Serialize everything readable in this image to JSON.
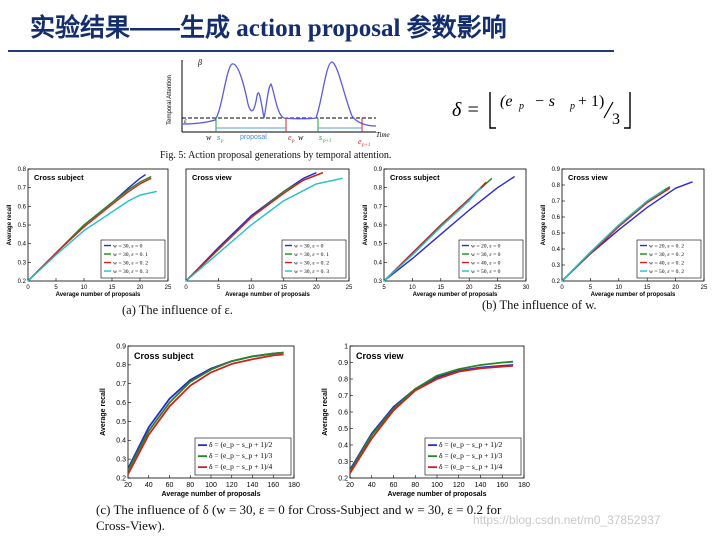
{
  "slide": {
    "title_cn_1": "实验结果——生成",
    "title_en": " action proposal ",
    "title_cn_2": "参数影响"
  },
  "formula": {
    "lhs": "δ =",
    "numerator": "(e",
    "sub_p": "p",
    "minus": "−  s",
    "plus_one": "+ 1)",
    "denominator": "3"
  },
  "fig5": {
    "caption": "Fig. 5: Action proposal generations by temporal attention.",
    "ylabel": "Temporal Attention",
    "beta": "β",
    "eps": "ε",
    "w1": "w",
    "sp": "s",
    "sp_sub": "p",
    "proposal": "proposal",
    "ep": "e",
    "ep_sub": "p",
    "w2": "w",
    "sp1": "s",
    "sp1_sub": "p+1",
    "ep1": "e",
    "ep1_sub": "p+1",
    "xlabel": "Time"
  },
  "captions": {
    "a": "(a) The influence of ε.",
    "b": "(b) The influence of w.",
    "c": "(c) The influence of δ (w = 30, ε = 0 for Cross-Subject and w = 30, ε = 0.2 for Cross-View)."
  },
  "watermark": "https://blog.csdn.net/m0_37852937",
  "chart_data": [
    {
      "id": "a1",
      "type": "line",
      "title": "Cross subject",
      "xlabel": "Average number of proposals",
      "ylabel": "Average recall",
      "xlim": [
        0,
        25
      ],
      "ylim": [
        0.2,
        0.8
      ],
      "xticks": [
        0,
        5,
        10,
        15,
        20,
        25
      ],
      "yticks": [
        0.2,
        0.3,
        0.4,
        0.5,
        0.6,
        0.7,
        0.8
      ],
      "legend": "bottom-right",
      "grid": false,
      "series": [
        {
          "name": "w = 30, ε = 0",
          "color": "#2a2ad0",
          "x": [
            0,
            5,
            10,
            15,
            18,
            20,
            21
          ],
          "y": [
            0.2,
            0.35,
            0.5,
            0.62,
            0.7,
            0.75,
            0.77
          ]
        },
        {
          "name": "w = 30, ε = 0. 1",
          "color": "#1f8a1f",
          "x": [
            0,
            5,
            10,
            15,
            18,
            20,
            22
          ],
          "y": [
            0.2,
            0.35,
            0.5,
            0.62,
            0.69,
            0.73,
            0.76
          ]
        },
        {
          "name": "w = 30, ε = 0. 2",
          "color": "#d42020",
          "x": [
            0,
            5,
            10,
            15,
            18,
            20,
            22
          ],
          "y": [
            0.2,
            0.35,
            0.49,
            0.61,
            0.68,
            0.72,
            0.75
          ]
        },
        {
          "name": "w = 30, ε = 0. 3",
          "color": "#21c0c0",
          "x": [
            0,
            5,
            10,
            15,
            18,
            20,
            23
          ],
          "y": [
            0.2,
            0.34,
            0.47,
            0.57,
            0.63,
            0.66,
            0.68
          ]
        }
      ]
    },
    {
      "id": "a2",
      "type": "line",
      "title": "Cross view",
      "xlabel": "Average number of proposals",
      "ylabel": "",
      "xlim": [
        0,
        25
      ],
      "ylim": [
        0.2,
        0.8
      ],
      "xticks": [
        0,
        5,
        10,
        15,
        20,
        25
      ],
      "yticks": [],
      "legend": "bottom-right",
      "grid": false,
      "series": [
        {
          "name": "w = 30, ε = 0",
          "color": "#2a2ad0",
          "x": [
            0,
            5,
            10,
            15,
            18,
            20
          ],
          "y": [
            0.2,
            0.38,
            0.55,
            0.68,
            0.75,
            0.78
          ]
        },
        {
          "name": "w = 30, ε = 0. 1",
          "color": "#1f8a1f",
          "x": [
            0,
            5,
            10,
            15,
            18,
            21
          ],
          "y": [
            0.2,
            0.37,
            0.54,
            0.68,
            0.74,
            0.78
          ]
        },
        {
          "name": "w = 30, ε = 0. 2",
          "color": "#d42020",
          "x": [
            0,
            5,
            10,
            15,
            18,
            21
          ],
          "y": [
            0.2,
            0.37,
            0.54,
            0.67,
            0.74,
            0.78
          ]
        },
        {
          "name": "w = 30, ε = 0. 3",
          "color": "#21c0c0",
          "x": [
            0,
            5,
            10,
            15,
            20,
            24
          ],
          "y": [
            0.2,
            0.35,
            0.5,
            0.63,
            0.72,
            0.75
          ]
        }
      ]
    },
    {
      "id": "b1",
      "type": "line",
      "title": "Cross subject",
      "xlabel": "Average number of proposals",
      "ylabel": "Average recall",
      "xlim": [
        5,
        30
      ],
      "ylim": [
        0.3,
        0.9
      ],
      "xticks": [
        5,
        10,
        15,
        20,
        25,
        30
      ],
      "yticks": [
        0.3,
        0.4,
        0.5,
        0.6,
        0.7,
        0.8,
        0.9
      ],
      "legend": "bottom-right",
      "grid": false,
      "series": [
        {
          "name": "w = 20, ε = 0",
          "color": "#2a2ad0",
          "x": [
            5,
            10,
            15,
            20,
            25,
            28
          ],
          "y": [
            0.3,
            0.42,
            0.55,
            0.68,
            0.8,
            0.86
          ]
        },
        {
          "name": "w = 30, ε = 0",
          "color": "#1f8a1f",
          "x": [
            5,
            10,
            15,
            20,
            24
          ],
          "y": [
            0.3,
            0.45,
            0.6,
            0.74,
            0.85
          ]
        },
        {
          "name": "w = 40, ε = 0",
          "color": "#d42020",
          "x": [
            5,
            10,
            15,
            20,
            23
          ],
          "y": [
            0.3,
            0.45,
            0.6,
            0.74,
            0.83
          ]
        },
        {
          "name": "w = 50, ε = 0",
          "color": "#21c0c0",
          "x": [
            5,
            10,
            15,
            20,
            22
          ],
          "y": [
            0.3,
            0.44,
            0.59,
            0.73,
            0.8
          ]
        }
      ]
    },
    {
      "id": "b2",
      "type": "line",
      "title": "Cross view",
      "xlabel": "Average number of proposals",
      "ylabel": "Average recall",
      "xlim": [
        0,
        25
      ],
      "ylim": [
        0.2,
        0.9
      ],
      "xticks": [
        0,
        5,
        10,
        15,
        20,
        25
      ],
      "yticks": [
        0.2,
        0.3,
        0.4,
        0.5,
        0.6,
        0.7,
        0.8,
        0.9
      ],
      "legend": "bottom-right",
      "grid": false,
      "series": [
        {
          "name": "w = 20, ε = 0. 2",
          "color": "#2a2ad0",
          "x": [
            0,
            5,
            10,
            15,
            20,
            23
          ],
          "y": [
            0.2,
            0.37,
            0.52,
            0.66,
            0.78,
            0.82
          ]
        },
        {
          "name": "w = 30, ε = 0. 2",
          "color": "#1f8a1f",
          "x": [
            0,
            5,
            10,
            15,
            19
          ],
          "y": [
            0.2,
            0.38,
            0.55,
            0.7,
            0.79
          ]
        },
        {
          "name": "w = 40, ε = 0. 2",
          "color": "#d42020",
          "x": [
            0,
            5,
            10,
            15,
            19
          ],
          "y": [
            0.2,
            0.37,
            0.54,
            0.69,
            0.78
          ]
        },
        {
          "name": "w = 50, ε = 0. 2",
          "color": "#21c0c0",
          "x": [
            0,
            5,
            10,
            15,
            18
          ],
          "y": [
            0.2,
            0.38,
            0.55,
            0.7,
            0.77
          ]
        }
      ]
    },
    {
      "id": "c1",
      "type": "line",
      "title": "Cross subject",
      "xlabel": "Average number of proposals",
      "ylabel": "Average recall",
      "xlim": [
        20,
        180
      ],
      "ylim": [
        0.2,
        0.9
      ],
      "xticks": [
        20,
        40,
        60,
        80,
        100,
        120,
        140,
        160,
        180
      ],
      "yticks": [
        0.2,
        0.3,
        0.4,
        0.5,
        0.6,
        0.7,
        0.8,
        0.9
      ],
      "legend": "bottom-right",
      "grid": false,
      "series": [
        {
          "name": "δ = (e_p − s_p + 1)/2",
          "color": "#2a2ad0",
          "x": [
            20,
            40,
            60,
            80,
            100,
            120,
            140,
            160,
            170
          ],
          "y": [
            0.25,
            0.47,
            0.62,
            0.72,
            0.78,
            0.82,
            0.845,
            0.86,
            0.865
          ]
        },
        {
          "name": "δ = (e_p − s_p + 1)/3",
          "color": "#1f8a1f",
          "x": [
            20,
            40,
            60,
            80,
            100,
            120,
            140,
            160,
            170
          ],
          "y": [
            0.24,
            0.45,
            0.6,
            0.71,
            0.775,
            0.82,
            0.845,
            0.86,
            0.865
          ]
        },
        {
          "name": "δ = (e_p − s_p + 1)/4",
          "color": "#d42020",
          "x": [
            20,
            40,
            60,
            80,
            100,
            120,
            140,
            160,
            170
          ],
          "y": [
            0.22,
            0.43,
            0.58,
            0.69,
            0.76,
            0.805,
            0.83,
            0.85,
            0.855
          ]
        }
      ]
    },
    {
      "id": "c2",
      "type": "line",
      "title": "Cross view",
      "xlabel": "Average number of proposals",
      "ylabel": "Average recall",
      "xlim": [
        20,
        180
      ],
      "ylim": [
        0.2,
        1.0
      ],
      "xticks": [
        20,
        40,
        60,
        80,
        100,
        120,
        140,
        160,
        180
      ],
      "yticks": [
        0.2,
        0.3,
        0.4,
        0.5,
        0.6,
        0.7,
        0.8,
        0.9,
        1.0
      ],
      "legend": "bottom-right",
      "grid": false,
      "series": [
        {
          "name": "δ = (e_p − s_p + 1)/2",
          "color": "#2a2ad0",
          "x": [
            20,
            40,
            60,
            80,
            100,
            120,
            140,
            160,
            170
          ],
          "y": [
            0.25,
            0.47,
            0.63,
            0.74,
            0.81,
            0.85,
            0.87,
            0.88,
            0.885
          ]
        },
        {
          "name": "δ = (e_p − s_p + 1)/3",
          "color": "#1f8a1f",
          "x": [
            20,
            40,
            60,
            80,
            100,
            120,
            140,
            160,
            170
          ],
          "y": [
            0.24,
            0.46,
            0.62,
            0.74,
            0.82,
            0.86,
            0.885,
            0.9,
            0.905
          ]
        },
        {
          "name": "δ = (e_p − s_p + 1)/4",
          "color": "#d42020",
          "x": [
            20,
            40,
            60,
            80,
            100,
            120,
            140,
            160,
            170
          ],
          "y": [
            0.23,
            0.44,
            0.61,
            0.73,
            0.8,
            0.845,
            0.865,
            0.875,
            0.88
          ]
        }
      ]
    }
  ]
}
